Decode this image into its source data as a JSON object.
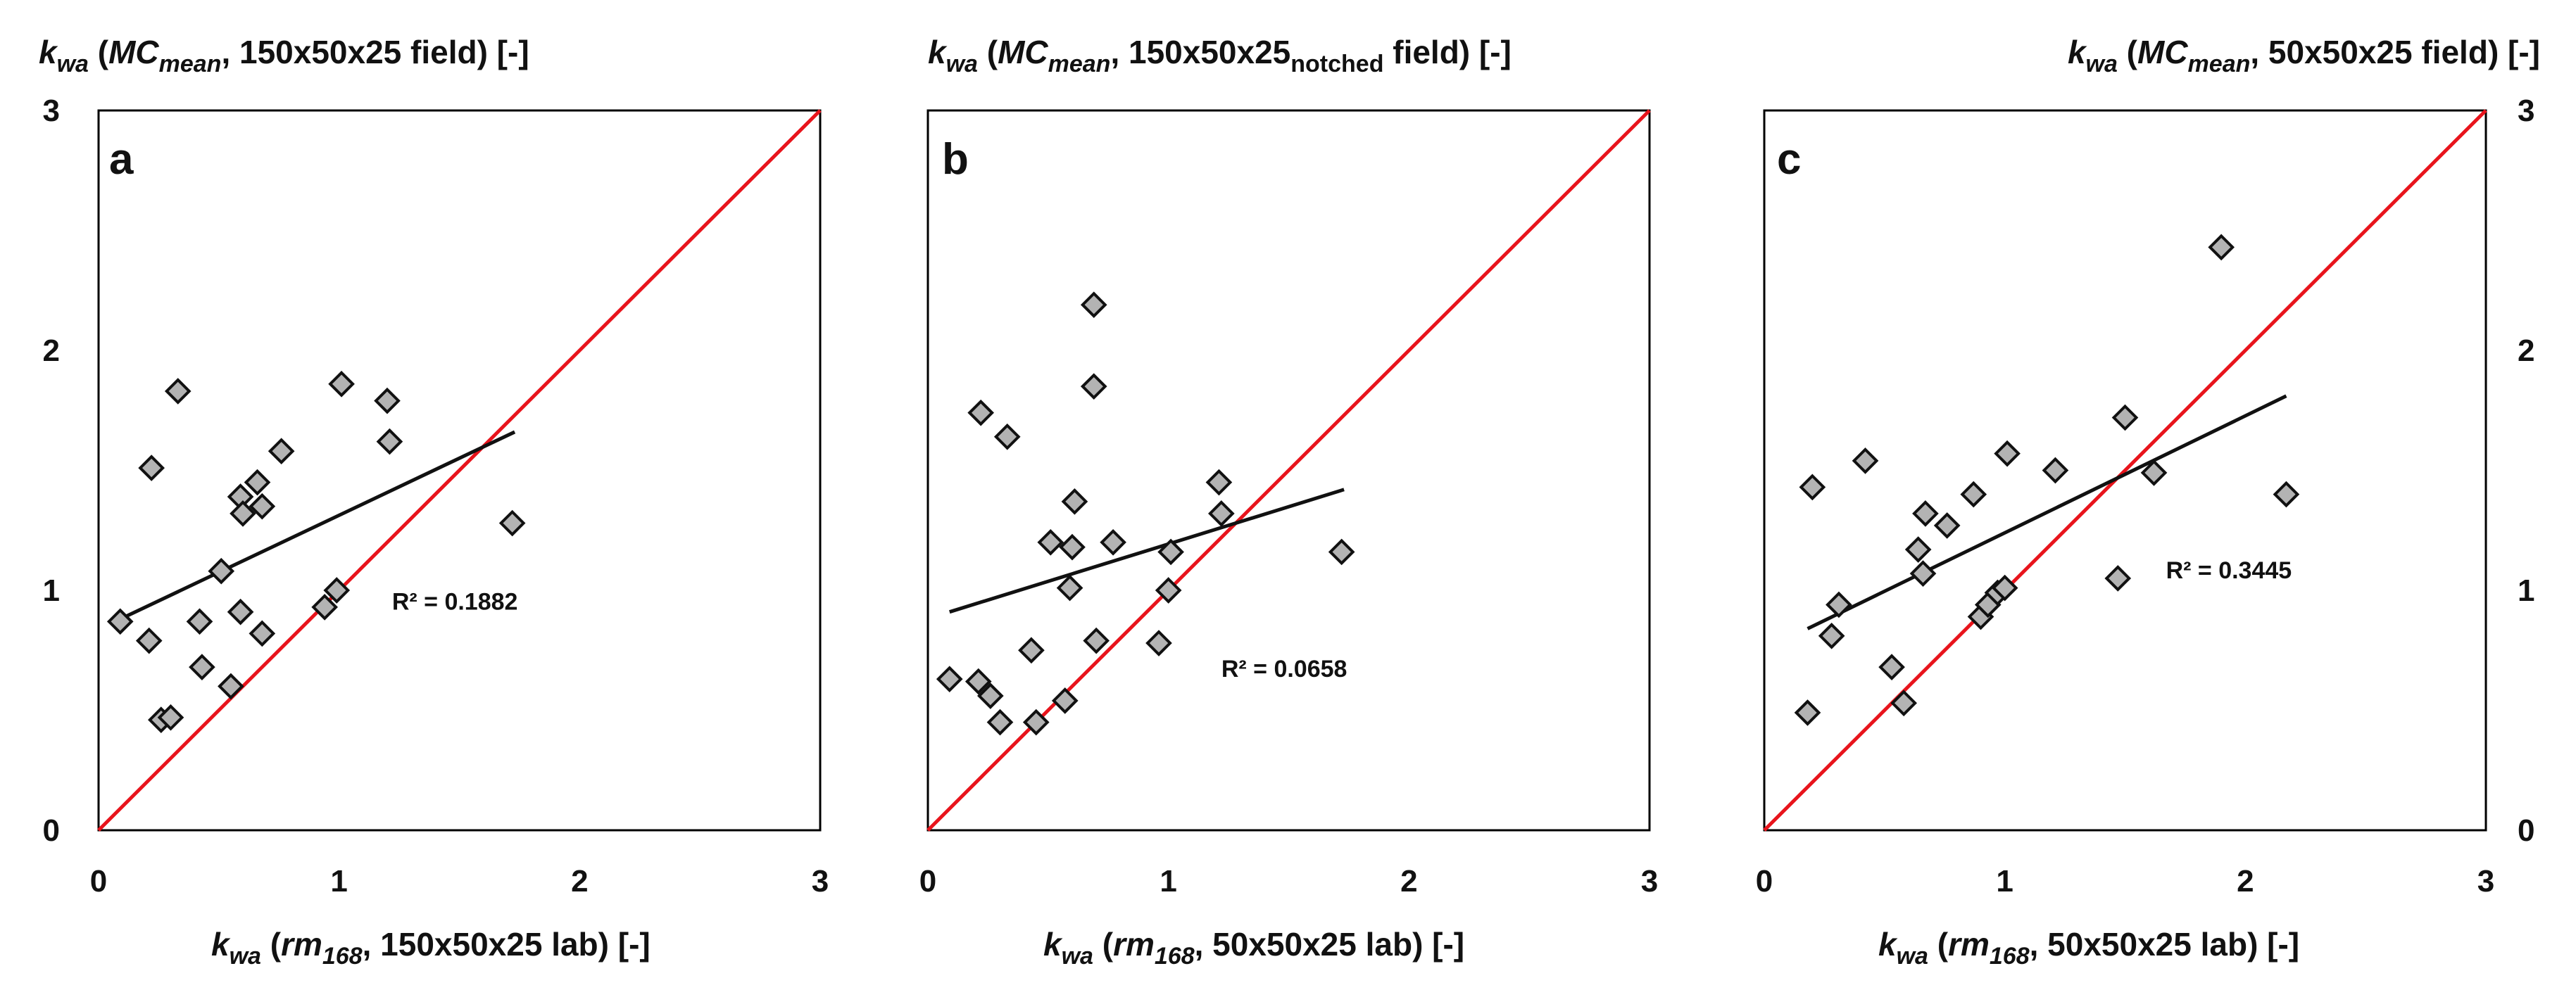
{
  "chart_data": [
    {
      "type": "scatter",
      "panel_label": "a",
      "title_prefix": "k",
      "title_prefix_sub": "wa",
      "title_open": " (",
      "title_var": "MC",
      "title_var_sub": "mean",
      "title_rest": ", 150x50x25 field) [-]",
      "title_rest_sub": "",
      "title_tail": "",
      "xlabel_prefix": "k",
      "xlabel_prefix_sub": "wa",
      "xlabel_open": " (",
      "xlabel_var": "rm",
      "xlabel_var_sub": "168",
      "xlabel_rest": ", 150x50x25 lab) [-]",
      "xlim": [
        0,
        3
      ],
      "ylim": [
        0,
        3
      ],
      "x_ticks": [
        "0",
        "1",
        "2",
        "3"
      ],
      "y_ticks": [
        "0",
        "1",
        "2",
        "3"
      ],
      "y_ticks_side": "left",
      "title_align": "left",
      "reference_line": {
        "label": "1:1 line",
        "color": "#e8141c",
        "from": [
          0,
          0
        ],
        "to": [
          3,
          3
        ]
      },
      "trendline": {
        "x": [
          0.09,
          1.73
        ],
        "y": [
          0.88,
          1.66
        ],
        "color": "#111111"
      },
      "r_squared": "R² = 0.1882",
      "r_squared_pos": [
        1.22,
        0.92
      ],
      "series": [
        {
          "name": "specimens",
          "marker": "diamond",
          "color": "#b3b3b3",
          "points": [
            [
              0.09,
              0.87
            ],
            [
              0.21,
              0.79
            ],
            [
              0.22,
              1.51
            ],
            [
              0.26,
              0.46
            ],
            [
              0.3,
              0.47
            ],
            [
              0.33,
              1.83
            ],
            [
              0.42,
              0.87
            ],
            [
              0.43,
              0.68
            ],
            [
              0.51,
              1.08
            ],
            [
              0.55,
              0.6
            ],
            [
              0.59,
              0.91
            ],
            [
              0.59,
              1.39
            ],
            [
              0.6,
              1.32
            ],
            [
              0.66,
              1.45
            ],
            [
              0.68,
              1.35
            ],
            [
              0.68,
              0.82
            ],
            [
              0.76,
              1.58
            ],
            [
              0.94,
              0.93
            ],
            [
              0.99,
              1.0
            ],
            [
              1.01,
              1.86
            ],
            [
              1.2,
              1.79
            ],
            [
              1.21,
              1.62
            ],
            [
              1.72,
              1.28
            ]
          ]
        }
      ]
    },
    {
      "type": "scatter",
      "panel_label": "b",
      "title_prefix": "k",
      "title_prefix_sub": "wa",
      "title_open": " (",
      "title_var": "MC",
      "title_var_sub": "mean",
      "title_rest": ", 150x50x25",
      "title_rest_sub": "notched",
      "title_tail": " field) [-]",
      "xlabel_prefix": "k",
      "xlabel_prefix_sub": "wa",
      "xlabel_open": " (",
      "xlabel_var": "rm",
      "xlabel_var_sub": "168",
      "xlabel_rest": ", 50x50x25 lab) [-]",
      "xlim": [
        0,
        3
      ],
      "ylim": [
        0,
        3
      ],
      "x_ticks": [
        "0",
        "1",
        "2",
        "3"
      ],
      "y_ticks": [],
      "y_ticks_side": "none",
      "title_align": "left",
      "reference_line": {
        "label": "1:1 line",
        "color": "#e8141c",
        "from": [
          0,
          0
        ],
        "to": [
          3,
          3
        ]
      },
      "trendline": {
        "x": [
          0.09,
          1.73
        ],
        "y": [
          0.91,
          1.42
        ],
        "color": "#111111"
      },
      "r_squared": "R² = 0.0658",
      "r_squared_pos": [
        1.22,
        0.64
      ],
      "series": [
        {
          "name": "specimens",
          "marker": "diamond",
          "color": "#b3b3b3",
          "points": [
            [
              0.09,
              0.63
            ],
            [
              0.21,
              0.62
            ],
            [
              0.22,
              1.74
            ],
            [
              0.26,
              0.56
            ],
            [
              0.3,
              0.45
            ],
            [
              0.33,
              1.64
            ],
            [
              0.43,
              0.75
            ],
            [
              0.45,
              0.45
            ],
            [
              0.51,
              1.2
            ],
            [
              0.57,
              0.54
            ],
            [
              0.59,
              1.01
            ],
            [
              0.6,
              1.18
            ],
            [
              0.61,
              1.37
            ],
            [
              0.69,
              2.19
            ],
            [
              0.69,
              1.85
            ],
            [
              0.7,
              0.79
            ],
            [
              0.77,
              1.2
            ],
            [
              0.96,
              0.78
            ],
            [
              1.0,
              1.0
            ],
            [
              1.01,
              1.16
            ],
            [
              1.21,
              1.45
            ],
            [
              1.22,
              1.32
            ],
            [
              1.72,
              1.16
            ]
          ]
        }
      ]
    },
    {
      "type": "scatter",
      "panel_label": "c",
      "title_prefix": "k",
      "title_prefix_sub": "wa",
      "title_open": " (",
      "title_var": "MC",
      "title_var_sub": "mean",
      "title_rest": ", 50x50x25 field) [-]",
      "title_rest_sub": "",
      "title_tail": "",
      "xlabel_prefix": "k",
      "xlabel_prefix_sub": "wa",
      "xlabel_open": " (",
      "xlabel_var": "rm",
      "xlabel_var_sub": "168",
      "xlabel_rest": ", 50x50x25 lab) [-]",
      "xlim": [
        0,
        3
      ],
      "ylim": [
        0,
        3
      ],
      "x_ticks": [
        "0",
        "1",
        "2",
        "3"
      ],
      "y_ticks": [
        "0",
        "1",
        "2",
        "3"
      ],
      "y_ticks_side": "right",
      "title_align": "right",
      "reference_line": {
        "label": "1:1 line",
        "color": "#e8141c",
        "from": [
          0,
          0
        ],
        "to": [
          3,
          3
        ]
      },
      "trendline": {
        "x": [
          0.18,
          2.17
        ],
        "y": [
          0.84,
          1.81
        ],
        "color": "#111111"
      },
      "r_squared": "R² = 0.3445",
      "r_squared_pos": [
        1.67,
        1.05
      ],
      "series": [
        {
          "name": "specimens",
          "marker": "diamond",
          "color": "#b3b3b3",
          "points": [
            [
              0.18,
              0.49
            ],
            [
              0.2,
              1.43
            ],
            [
              0.28,
              0.81
            ],
            [
              0.31,
              0.94
            ],
            [
              0.42,
              1.54
            ],
            [
              0.53,
              0.68
            ],
            [
              0.58,
              0.53
            ],
            [
              0.64,
              1.17
            ],
            [
              0.66,
              1.07
            ],
            [
              0.67,
              1.32
            ],
            [
              0.76,
              1.27
            ],
            [
              0.87,
              1.4
            ],
            [
              0.9,
              0.89
            ],
            [
              0.93,
              0.94
            ],
            [
              0.97,
              0.99
            ],
            [
              1.0,
              1.01
            ],
            [
              1.01,
              1.57
            ],
            [
              1.21,
              1.5
            ],
            [
              1.47,
              1.05
            ],
            [
              1.5,
              1.72
            ],
            [
              1.62,
              1.49
            ],
            [
              1.9,
              2.43
            ],
            [
              2.17,
              1.4
            ]
          ]
        }
      ]
    }
  ]
}
